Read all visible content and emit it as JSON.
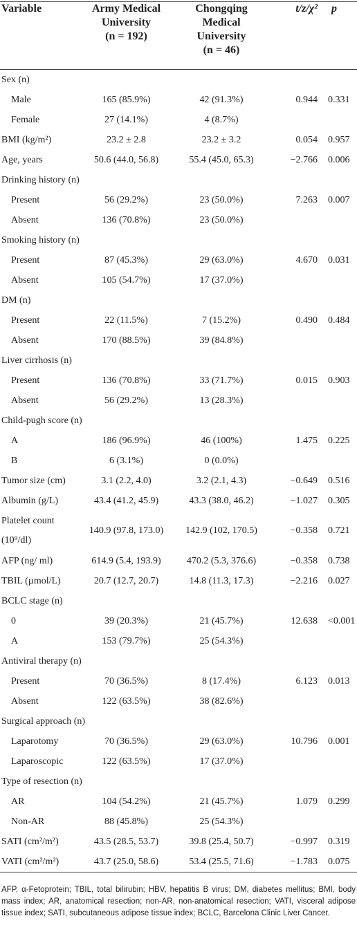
{
  "table": {
    "columns": [
      [
        "Variable"
      ],
      [
        "Army Medical",
        "University",
        "(n = 192)"
      ],
      [
        "Chongqing",
        "Medical",
        "University",
        "(n = 46)"
      ],
      [
        "t/z/χ²"
      ],
      [
        "p"
      ]
    ],
    "rows": [
      {
        "variable": "Sex (n)",
        "levels": [
          {
            "variable": "Male",
            "army": "165 (85.9%)",
            "chongqing": "42 (91.3%)",
            "stat": "0.944",
            "p": "0.331"
          },
          {
            "variable": "Female",
            "army": "27 (14.1%)",
            "chongqing": "4 (8.7%)"
          }
        ]
      },
      {
        "variable": "BMI (kg/m²)",
        "army": "23.2 ± 2.8",
        "chongqing": "23.2 ± 3.2",
        "stat": "0.054",
        "p": "0.957"
      },
      {
        "variable": "Age, years",
        "army": "50.6 (44.0, 56.8)",
        "chongqing": "55.4 (45.0, 65.3)",
        "stat": "−2.766",
        "p": "0.006"
      },
      {
        "variable": "Drinking history (n)",
        "levels": [
          {
            "variable": "Present",
            "army": "56 (29.2%)",
            "chongqing": "23 (50.0%)",
            "stat": "7.263",
            "p": "0.007"
          },
          {
            "variable": "Absent",
            "army": "136 (70.8%)",
            "chongqing": "23 (50.0%)"
          }
        ]
      },
      {
        "variable": "Smoking history (n)",
        "levels": [
          {
            "variable": "Present",
            "army": "87 (45.3%)",
            "chongqing": "29 (63.0%)",
            "stat": "4.670",
            "p": "0.031"
          },
          {
            "variable": "Absent",
            "army": "105 (54.7%)",
            "chongqing": "17 (37.0%)"
          }
        ]
      },
      {
        "variable": "DM (n)",
        "levels": [
          {
            "variable": "Present",
            "army": "22 (11.5%)",
            "chongqing": "7 (15.2%)",
            "stat": "0.490",
            "p": "0.484"
          },
          {
            "variable": "Absent",
            "army": "170 (88.5%)",
            "chongqing": "39 (84.8%)"
          }
        ]
      },
      {
        "variable": "Liver cirrhosis (n)",
        "levels": [
          {
            "variable": "Present",
            "army": "136 (70.8%)",
            "chongqing": "33 (71.7%)",
            "stat": "0.015",
            "p": "0.903"
          },
          {
            "variable": "Absent",
            "army": "56 (29.2%)",
            "chongqing": "13 (28.3%)"
          }
        ]
      },
      {
        "variable": "Child-pugh score (n)",
        "levels": [
          {
            "variable": "A",
            "army": "186 (96.9%)",
            "chongqing": "46 (100%)",
            "stat": "1.475",
            "p": "0.225"
          },
          {
            "variable": "B",
            "army": "6 (3.1%)",
            "chongqing": "0 (0.0%)"
          }
        ]
      },
      {
        "variable": "Tumor size (cm)",
        "army": "3.1 (2.2, 4.0)",
        "chongqing": "3.2 (2.1, 4.3)",
        "stat": "−0.649",
        "p": "0.516"
      },
      {
        "variable": "Albumin (g/L)",
        "army": "43.4 (41.2, 45.9)",
        "chongqing": "43.3 (38.0, 46.2)",
        "stat": "−1.027",
        "p": "0.305"
      },
      {
        "variable": "Platelet count (10⁹/dl)",
        "army": "140.9 (97.8, 173.0)",
        "chongqing": "142.9 (102, 170.5)",
        "stat": "−0.358",
        "p": "0.721"
      },
      {
        "variable": "AFP (ng/ ml)",
        "army": "614.9 (5.4, 193.9)",
        "chongqing": "470.2 (5.3, 376.6)",
        "stat": "−0.358",
        "p": "0.738"
      },
      {
        "variable": "TBIL (µmol/L)",
        "army": "20.7 (12.7, 20.7)",
        "chongqing": "14.8 (11.3, 17.3)",
        "stat": "−2.216",
        "p": "0.027"
      },
      {
        "variable": "BCLC stage (n)",
        "levels": [
          {
            "variable": "0",
            "army": "39 (20.3%)",
            "chongqing": "21 (45.7%)",
            "stat": "12.638",
            "p": "<0.001"
          },
          {
            "variable": "A",
            "army": "153 (79.7%)",
            "chongqing": "25 (54.3%)"
          }
        ]
      },
      {
        "variable": "Antiviral therapy (n)",
        "levels": [
          {
            "variable": "Present",
            "army": "70 (36.5%)",
            "chongqing": "8 (17.4%)",
            "stat": "6.123",
            "p": "0.013"
          },
          {
            "variable": "Absent",
            "army": "122 (63.5%)",
            "chongqing": "38 (82.6%)"
          }
        ]
      },
      {
        "variable": "Surgical approach (n)",
        "levels": [
          {
            "variable": "Laparotomy",
            "army": "70 (36.5%)",
            "chongqing": "29 (63.0%)",
            "stat": "10.796",
            "p": "0.001"
          },
          {
            "variable": "Laparoscopic",
            "army": "122 (63.5%)",
            "chongqing": "17 (37.0%)"
          }
        ]
      },
      {
        "variable": "Type of resection (n)",
        "levels": [
          {
            "variable": "AR",
            "army": "104 (54.2%)",
            "chongqing": "21 (45.7%)",
            "stat": "1.079",
            "p": "0.299"
          },
          {
            "variable": "Non-AR",
            "army": "88 (45.8%)",
            "chongqing": "25 (54.3%)"
          }
        ]
      },
      {
        "variable": "SATI (cm²/m²)",
        "army": "43.5 (28.5, 53.7)",
        "chongqing": "39.8 (25.4, 50.7)",
        "stat": "−0.997",
        "p": "0.319"
      },
      {
        "variable": "VATI (cm²/m²)",
        "army": "43.7 (25.0, 58.6)",
        "chongqing": "53.4 (25.5, 71.6)",
        "stat": "−1.783",
        "p": "0.075"
      }
    ],
    "footnote": "AFP, α-Fetoprotein; TBIL, total bilirubin; HBV, hepatitis B virus; DM, diabetes mellitus; BMI, body mass index; AR, anatomical resection; non-AR, non-anatomical resection; VATI, visceral adipose tissue index; SATI, subcutaneous adipose tissue index; BCLC, Barcelona Clinic Liver Cancer."
  }
}
